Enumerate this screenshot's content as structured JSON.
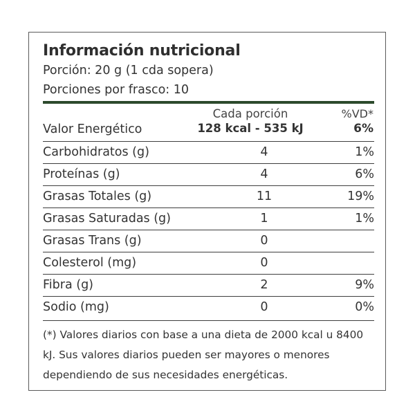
{
  "title": "Información nutricional",
  "serving": "Porción: 20 g (1 cda sopera)",
  "servings_per_container": "Porciones por frasco: 10",
  "header": {
    "per_serving_label": "Cada porción",
    "dv_label": "%VD*",
    "energy_label": "Valor Energético",
    "energy_value": "128 kcal - 535 kJ",
    "energy_dv": "6%"
  },
  "rows": [
    {
      "label": "Carbohidratos (g)",
      "value": "4",
      "dv": "1%"
    },
    {
      "label": "Proteínas (g)",
      "value": "4",
      "dv": "6%"
    },
    {
      "label": "Grasas Totales (g)",
      "value": "11",
      "dv": "19%"
    },
    {
      "label": "Grasas Saturadas (g)",
      "value": "1",
      "dv": "1%"
    },
    {
      "label": "Grasas Trans (g)",
      "value": "0",
      "dv": ""
    },
    {
      "label": "Colesterol (mg)",
      "value": "0",
      "dv": ""
    },
    {
      "label": "Fibra (g)",
      "value": "2",
      "dv": "9%"
    },
    {
      "label": "Sodio (mg)",
      "value": "0",
      "dv": "0%"
    }
  ],
  "footnote": "(*) Valores diarios con base a una dieta de 2000 kcal u 8400 kJ. Sus valores diarios pueden ser mayores o menores dependiendo de sus necesidades energéticas.",
  "colors": {
    "rule": "#2c4a2c",
    "border": "#5a5a5a",
    "text": "#333333"
  }
}
